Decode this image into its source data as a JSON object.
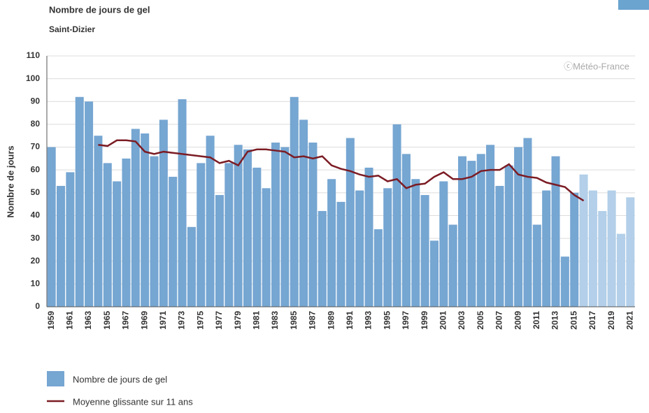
{
  "chart_data": {
    "type": "bar",
    "title": "Nombre de jours de gel",
    "subtitle": "Saint-Dizier",
    "watermark": "ⓒMétéo-France",
    "y_label": "Nombre de jours",
    "categories": [
      "1959",
      null,
      "1961",
      null,
      "1963",
      null,
      "1965",
      null,
      "1967",
      null,
      "1969",
      null,
      "1971",
      null,
      "1973",
      null,
      "1975",
      null,
      "1977",
      null,
      "1979",
      null,
      "1981",
      null,
      "1983",
      null,
      "1985",
      null,
      "1987",
      null,
      "1989",
      null,
      "1991",
      null,
      "1993",
      null,
      "1995",
      null,
      "1997",
      null,
      "1999",
      null,
      "2001",
      null,
      "2003",
      null,
      "2005",
      null,
      "2007",
      null,
      "2009",
      null,
      "2011",
      null,
      "2013",
      null,
      "2015",
      null,
      "2017",
      null,
      "2019",
      null,
      "2021"
    ],
    "series": [
      {
        "name": "Nombre de jours de gel",
        "type": "bar",
        "color": "#76a6d2",
        "colors": [
          "#76a6d2",
          "#76a6d2",
          "#76a6d2",
          "#76a6d2",
          "#76a6d2",
          "#76a6d2",
          "#76a6d2",
          "#76a6d2",
          "#76a6d2",
          "#76a6d2",
          "#76a6d2",
          "#76a6d2",
          "#76a6d2",
          "#76a6d2",
          "#76a6d2",
          "#76a6d2",
          "#76a6d2",
          "#76a6d2",
          "#76a6d2",
          "#76a6d2",
          "#76a6d2",
          "#76a6d2",
          "#76a6d2",
          "#76a6d2",
          "#76a6d2",
          "#76a6d2",
          "#76a6d2",
          "#76a6d2",
          "#76a6d2",
          "#76a6d2",
          "#76a6d2",
          "#76a6d2",
          "#76a6d2",
          "#76a6d2",
          "#76a6d2",
          "#76a6d2",
          "#76a6d2",
          "#76a6d2",
          "#76a6d2",
          "#76a6d2",
          "#76a6d2",
          "#76a6d2",
          "#76a6d2",
          "#76a6d2",
          "#76a6d2",
          "#76a6d2",
          "#76a6d2",
          "#76a6d2",
          "#76a6d2",
          "#76a6d2",
          "#76a6d2",
          "#76a6d2",
          "#76a6d2",
          "#76a6d2",
          "#76a6d2",
          "#76a6d2",
          "#76a6d2",
          "#b3cfe9",
          "#b3cfe9",
          "#b3cfe9",
          "#b3cfe9",
          "#b3cfe9",
          "#b3cfe9"
        ],
        "values": [
          70,
          53,
          59,
          92,
          90,
          75,
          63,
          55,
          65,
          78,
          76,
          66,
          82,
          57,
          91,
          35,
          63,
          75,
          49,
          63,
          71,
          69,
          61,
          52,
          72,
          70,
          92,
          82,
          72,
          42,
          56,
          46,
          74,
          51,
          61,
          34,
          52,
          80,
          67,
          56,
          49,
          29,
          55,
          36,
          66,
          64,
          67,
          71,
          53,
          62,
          70,
          74,
          36,
          51,
          66,
          22,
          50,
          58,
          51,
          42,
          51,
          32,
          48
        ]
      },
      {
        "name": "Moyenne glissante sur 11 ans",
        "type": "line",
        "color": "#7b1c24",
        "values": [
          null,
          null,
          null,
          null,
          null,
          71,
          70.5,
          73,
          73,
          72.5,
          68,
          67,
          68,
          67.5,
          67,
          66.5,
          66,
          65.5,
          63,
          64,
          62,
          68,
          69,
          69,
          68.5,
          68,
          65.5,
          66,
          65,
          66,
          62,
          60.5,
          59.5,
          58,
          57,
          57.5,
          55,
          56,
          52,
          53.5,
          54,
          57,
          59,
          56,
          56,
          57,
          59.5,
          60,
          60,
          62.5,
          58,
          57,
          56.5,
          54.5,
          53.5,
          52.5,
          49,
          46.5,
          null,
          null,
          null,
          null,
          null
        ]
      }
    ],
    "ylim": [
      0,
      110
    ],
    "yticks": [
      0,
      10,
      20,
      30,
      40,
      50,
      60,
      70,
      80,
      90,
      100,
      110
    ],
    "grid": true
  }
}
